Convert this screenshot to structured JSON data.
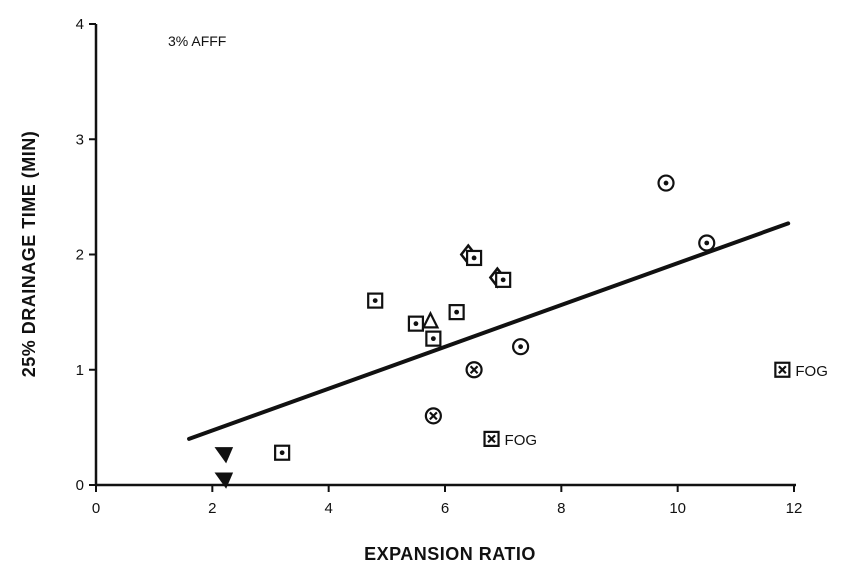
{
  "chart_data": {
    "type": "scatter",
    "title": "",
    "annotation": "3% AFFF",
    "xlabel": "EXPANSION RATIO",
    "ylabel": "25% DRAINAGE TIME (MIN)",
    "xlim": [
      0,
      12
    ],
    "ylim": [
      0,
      4
    ],
    "x_ticks": [
      0,
      2,
      4,
      6,
      8,
      10,
      12
    ],
    "y_ticks": [
      0,
      1,
      2,
      3,
      4
    ],
    "grid": false,
    "ink_color": "#111111",
    "fit_line": {
      "x": [
        1.6,
        11.9
      ],
      "y": [
        0.4,
        2.27
      ]
    },
    "points": [
      {
        "x": 2.2,
        "y": 0.27,
        "marker": "triangle-down"
      },
      {
        "x": 2.2,
        "y": 0.05,
        "marker": "triangle-down"
      },
      {
        "x": 3.2,
        "y": 0.28,
        "marker": "square-dot"
      },
      {
        "x": 4.8,
        "y": 1.6,
        "marker": "square-dot"
      },
      {
        "x": 5.5,
        "y": 1.4,
        "marker": "square-dot"
      },
      {
        "x": 5.75,
        "y": 1.42,
        "marker": "triangle-up"
      },
      {
        "x": 5.8,
        "y": 1.27,
        "marker": "square-dot"
      },
      {
        "x": 5.8,
        "y": 0.6,
        "marker": "circle-x"
      },
      {
        "x": 6.2,
        "y": 1.5,
        "marker": "square-dot"
      },
      {
        "x": 6.4,
        "y": 2.0,
        "marker": "diamond"
      },
      {
        "x": 6.5,
        "y": 1.97,
        "marker": "square-dot"
      },
      {
        "x": 6.5,
        "y": 1.0,
        "marker": "circle-x"
      },
      {
        "x": 6.9,
        "y": 1.8,
        "marker": "diamond"
      },
      {
        "x": 7.0,
        "y": 1.78,
        "marker": "square-dot"
      },
      {
        "x": 7.3,
        "y": 1.2,
        "marker": "circle-dot"
      },
      {
        "x": 9.8,
        "y": 2.62,
        "marker": "circle-dot"
      },
      {
        "x": 10.5,
        "y": 2.1,
        "marker": "circle-dot"
      },
      {
        "x": 6.8,
        "y": 0.4,
        "marker": "square-x",
        "label": "FOG"
      },
      {
        "x": 11.8,
        "y": 1.0,
        "marker": "square-x",
        "label": "FOG"
      }
    ]
  }
}
